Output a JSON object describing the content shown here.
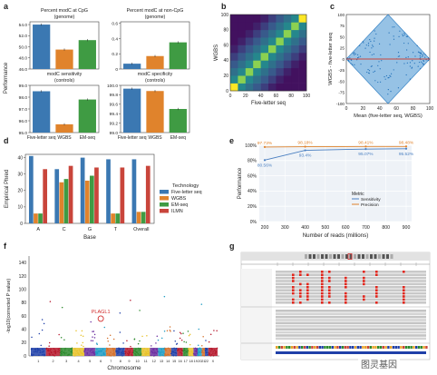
{
  "panel_letters": [
    "a",
    "b",
    "c",
    "d",
    "e",
    "f",
    "g"
  ],
  "watermark": "图灵基因",
  "colors": {
    "blue": "#3b78b2",
    "orange": "#e0832c",
    "green": "#3f9b43",
    "red": "#c9453b",
    "grey": "#9a9a9a"
  },
  "chart_data": [
    {
      "id": "a1",
      "type": "bar",
      "title": "Percent modC at CpG (genome)",
      "categories": [
        "Five-letter seq",
        "WGBS",
        "EM-seq"
      ],
      "values": [
        54.0,
        49.5,
        51.2
      ],
      "ylim": [
        46,
        54.5
      ],
      "ticks": [
        "54.0",
        "52.0",
        "50.0",
        "48.0",
        "46.0"
      ],
      "tick_values": [
        54,
        52,
        50,
        48,
        46
      ],
      "ylabel": "Performance"
    },
    {
      "id": "a2",
      "type": "bar",
      "title": "Percent modC at non-CpG (genome)",
      "categories": [
        "Five-letter seq",
        "WGBS",
        "EM-seq"
      ],
      "values": [
        0.07,
        0.17,
        0.35
      ],
      "ylim": [
        0,
        0.62
      ],
      "ticks": [
        "0.6",
        "0.4",
        "0.2",
        "0"
      ],
      "tick_values": [
        0.6,
        0.4,
        0.2,
        0
      ]
    },
    {
      "id": "a3",
      "type": "bar",
      "title": "modC sensitivity (controls)",
      "categories": [
        "Five-letter seq",
        "WGBS",
        "EM-seq"
      ],
      "values": [
        98.5,
        95.7,
        97.8
      ],
      "ylim": [
        95,
        99
      ],
      "ticks": [
        "99.0",
        "98.0",
        "97.0",
        "96.0",
        "95.0"
      ],
      "tick_values": [
        99,
        98,
        97,
        96,
        95
      ]
    },
    {
      "id": "a4",
      "type": "bar",
      "title": "modC specificity (controls)",
      "categories": [
        "Five-letter seq",
        "WGBS",
        "EM-seq"
      ],
      "values": [
        99.93,
        99.88,
        99.5
      ],
      "ylim": [
        99.0,
        100.0
      ],
      "ticks": [
        "100.0",
        "99.8",
        "99.6",
        "99.4",
        "99.2",
        "99.0"
      ],
      "tick_values": [
        100,
        99.8,
        99.6,
        99.4,
        99.2,
        99.0
      ]
    },
    {
      "id": "b",
      "type": "heatmap",
      "xlabel": "Five-letter seq",
      "ylabel": "WGBS",
      "xticks": [
        "0",
        "20",
        "40",
        "60",
        "80",
        "100"
      ],
      "yticks": [
        "0",
        "20",
        "40",
        "60",
        "80",
        "100"
      ],
      "grid_size": 10
    },
    {
      "id": "c",
      "type": "scatter",
      "xlabel": "Mean (five-letter seq, WGBS)",
      "ylabel": "WGBS - five-letter seq",
      "xticks": [
        "0",
        "20",
        "40",
        "60",
        "80",
        "100"
      ],
      "yticks": [
        "100",
        "75",
        "50",
        "25",
        "0",
        "-25",
        "-50",
        "-75",
        "-100"
      ],
      "ytick_values": [
        100,
        75,
        50,
        25,
        0,
        -25,
        -50,
        -75,
        -100
      ]
    },
    {
      "id": "d",
      "type": "bar",
      "ylabel": "Empirical Phred",
      "xlabel": "Base",
      "categories": [
        "A",
        "C",
        "G",
        "T",
        "Overall"
      ],
      "legend_title": "Technology",
      "legend_position": "center-right",
      "series": [
        {
          "name": "Five-letter seq",
          "values": [
            41,
            33,
            40,
            39,
            39
          ]
        },
        {
          "name": "WGBS",
          "values": [
            6,
            25,
            26,
            6,
            7
          ]
        },
        {
          "name": "EM-seq",
          "values": [
            6,
            27,
            29,
            6,
            7
          ]
        },
        {
          "name": "ILMN",
          "values": [
            33,
            35,
            34,
            34,
            35
          ]
        }
      ],
      "ylim": [
        0,
        42
      ],
      "ticks": [
        "40",
        "30",
        "20",
        "10",
        "0"
      ],
      "tick_values": [
        40,
        30,
        20,
        10,
        0
      ]
    },
    {
      "id": "e",
      "type": "line",
      "ylabel": "Performance",
      "xlabel": "Number of reads (millions)",
      "x": [
        200,
        400,
        700,
        900
      ],
      "xticks": [
        "200",
        "300",
        "400",
        "500",
        "600",
        "700",
        "800",
        "900"
      ],
      "xtick_values": [
        200,
        300,
        400,
        500,
        600,
        700,
        800,
        900
      ],
      "ylim": [
        0,
        100
      ],
      "ticks": [
        "100%",
        "80%",
        "60%",
        "40%",
        "20%",
        "0%"
      ],
      "tick_values": [
        100,
        80,
        60,
        40,
        20,
        0
      ],
      "legend_title": "Metric",
      "legend_position": "bottom-right",
      "series": [
        {
          "name": "Sensitivity",
          "values": [
            80.56,
            93.4,
            95.07,
            95.52
          ],
          "labels": [
            "80.56%",
            "93.4%",
            "95.07%",
            "95.52%"
          ]
        },
        {
          "name": "Precision",
          "values": [
            97.73,
            98.18,
            98.41,
            98.48
          ],
          "labels": [
            "97.73%",
            "98.18%",
            "98.41%",
            "98.48%"
          ]
        }
      ]
    },
    {
      "id": "f",
      "type": "scatter",
      "ylabel": "-log10(corrected P value)",
      "xlabel": "Chromosome",
      "ylim": [
        0,
        150
      ],
      "ticks": [
        "140",
        "120",
        "100",
        "80",
        "60",
        "40",
        "20",
        "0"
      ],
      "tick_values": [
        140,
        120,
        100,
        80,
        60,
        40,
        20,
        0
      ],
      "xticks": [
        "1",
        "2",
        "3",
        "4",
        "5",
        "6",
        "7",
        "8",
        "9",
        "10",
        "11",
        "12",
        "13",
        "14",
        "15",
        "16",
        "17",
        "18",
        "19",
        "20",
        "21",
        "22",
        "X"
      ],
      "annotation": {
        "label": "PLAGL1",
        "chromosome": "6",
        "value": 56
      }
    }
  ]
}
